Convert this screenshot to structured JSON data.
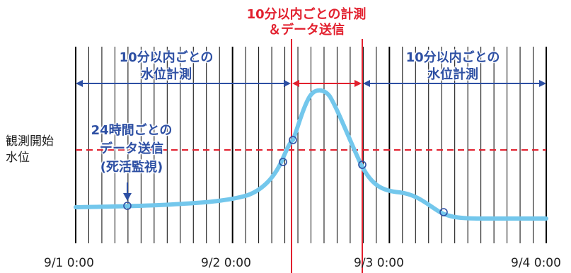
{
  "colors": {
    "blue": "#2d4fa3",
    "red": "#e2202e",
    "curve": "#73c7ec",
    "grid": "#000000"
  },
  "labels": {
    "top_red_line1": "10分以内ごとの計測",
    "top_red_line2": "＆データ送信",
    "left_blue_line1": "10分以内ごとの",
    "left_blue_line2": "水位計測",
    "right_blue_line1": "10分以内ごとの",
    "right_blue_line2": "水位計測",
    "alive_line1": "24時間ごとの",
    "alive_line2": "データ送信",
    "alive_line3": "(死活監視)",
    "start_level_line1": "観測開始",
    "start_level_line2": "水位"
  },
  "axis": {
    "ticks": [
      "9/1 0:00",
      "9/2 0:00",
      "9/3 0:00",
      "9/4 0:00"
    ]
  }
}
